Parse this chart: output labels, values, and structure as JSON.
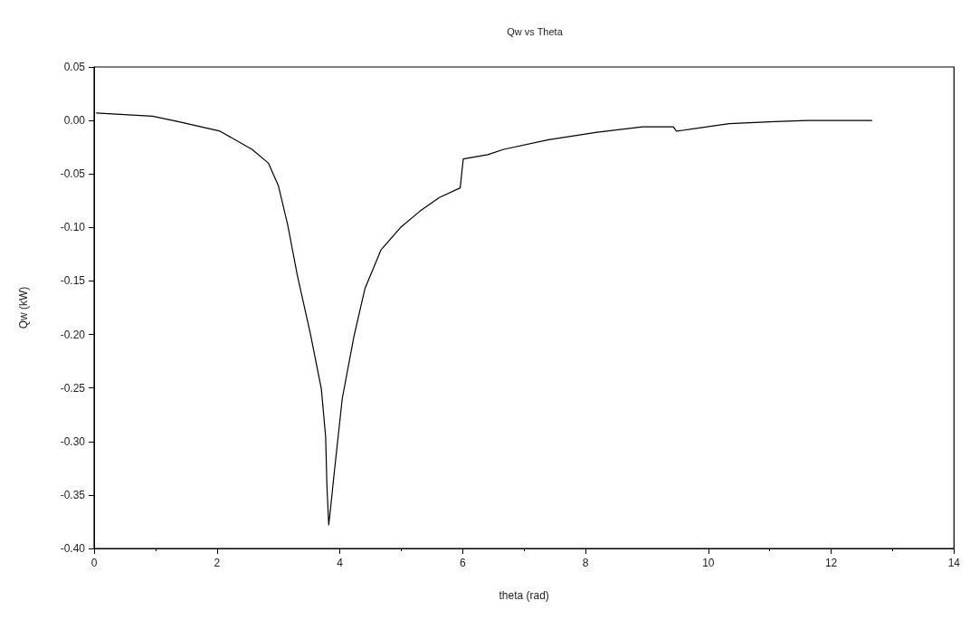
{
  "chart_data": {
    "type": "line",
    "title": "Qw vs Theta",
    "xlabel": "theta (rad)",
    "ylabel": "Qw (kW)",
    "xlim": [
      0,
      14
    ],
    "xticks": [
      0,
      2,
      4,
      6,
      8,
      10,
      12,
      14
    ],
    "ylim": [
      -0.4,
      0.05
    ],
    "yticks": [
      {
        "value": 0.05,
        "label": "0.05"
      },
      {
        "value": 0,
        "label": "0.00"
      },
      {
        "value": -0.05,
        "label": "-0.05"
      },
      {
        "value": -0.1,
        "label": "-0.10"
      },
      {
        "value": -0.15,
        "label": "-0.15"
      },
      {
        "value": -0.2,
        "label": "-0.20"
      },
      {
        "value": -0.25,
        "label": "-0.25"
      },
      {
        "value": -0.3,
        "label": "-0.30"
      },
      {
        "value": -0.35,
        "label": "-0.35"
      },
      {
        "value": -0.4,
        "label": "-0.40"
      }
    ],
    "grid": false,
    "marker": "none",
    "line_style": "solid",
    "series": [
      {
        "color": "#000000",
        "x": [
          0.04,
          0.95,
          1.37,
          2.05,
          2.57,
          2.84,
          3.0,
          3.15,
          3.31,
          3.52,
          3.7,
          3.77,
          3.79,
          3.82,
          3.86,
          3.91,
          4.04,
          4.23,
          4.41,
          4.67,
          4.99,
          5.3,
          5.62,
          5.96,
          6.01,
          6.41,
          6.67,
          7.4,
          8.19,
          8.93,
          9.43,
          9.48,
          9.61,
          10.34,
          11.08,
          11.61,
          12.66
        ],
        "values": [
          0.007,
          0.004,
          -0.001,
          -0.01,
          -0.027,
          -0.04,
          -0.061,
          -0.097,
          -0.145,
          -0.199,
          -0.251,
          -0.296,
          -0.341,
          -0.378,
          -0.357,
          -0.329,
          -0.26,
          -0.202,
          -0.157,
          -0.121,
          -0.1,
          -0.085,
          -0.072,
          -0.063,
          -0.036,
          -0.032,
          -0.027,
          -0.018,
          -0.011,
          -0.006,
          -0.006,
          -0.01,
          -0.009,
          -0.003,
          -0.001,
          0.0,
          0.0
        ]
      }
    ]
  }
}
